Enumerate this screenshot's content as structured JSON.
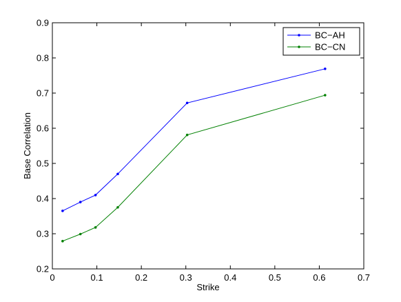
{
  "chart_data": {
    "type": "line",
    "xlabel": "Strike",
    "ylabel": "Base Correlation",
    "xlim": [
      0,
      0.7
    ],
    "ylim": [
      0.2,
      0.9
    ],
    "xticks": [
      0,
      0.1,
      0.2,
      0.3,
      0.4,
      0.5,
      0.6,
      0.7
    ],
    "yticks": [
      0.2,
      0.3,
      0.4,
      0.5,
      0.6,
      0.7,
      0.8,
      0.9
    ],
    "xtick_labels": [
      "0",
      "0.1",
      "0.2",
      "0.3",
      "0.4",
      "0.5",
      "0.6",
      "0.7"
    ],
    "ytick_labels": [
      "0.2",
      "0.3",
      "0.4",
      "0.5",
      "0.6",
      "0.7",
      "0.8",
      "0.9"
    ],
    "grid": false,
    "legend_position": "top-right",
    "series": [
      {
        "name": "BC−AH",
        "color": "#0000ff",
        "x": [
          0.023,
          0.063,
          0.097,
          0.147,
          0.303,
          0.613
        ],
        "y": [
          0.365,
          0.39,
          0.41,
          0.47,
          0.672,
          0.769
        ]
      },
      {
        "name": "BC−CN",
        "color": "#008000",
        "x": [
          0.023,
          0.063,
          0.097,
          0.147,
          0.303,
          0.613
        ],
        "y": [
          0.279,
          0.299,
          0.318,
          0.375,
          0.581,
          0.694
        ]
      }
    ]
  }
}
